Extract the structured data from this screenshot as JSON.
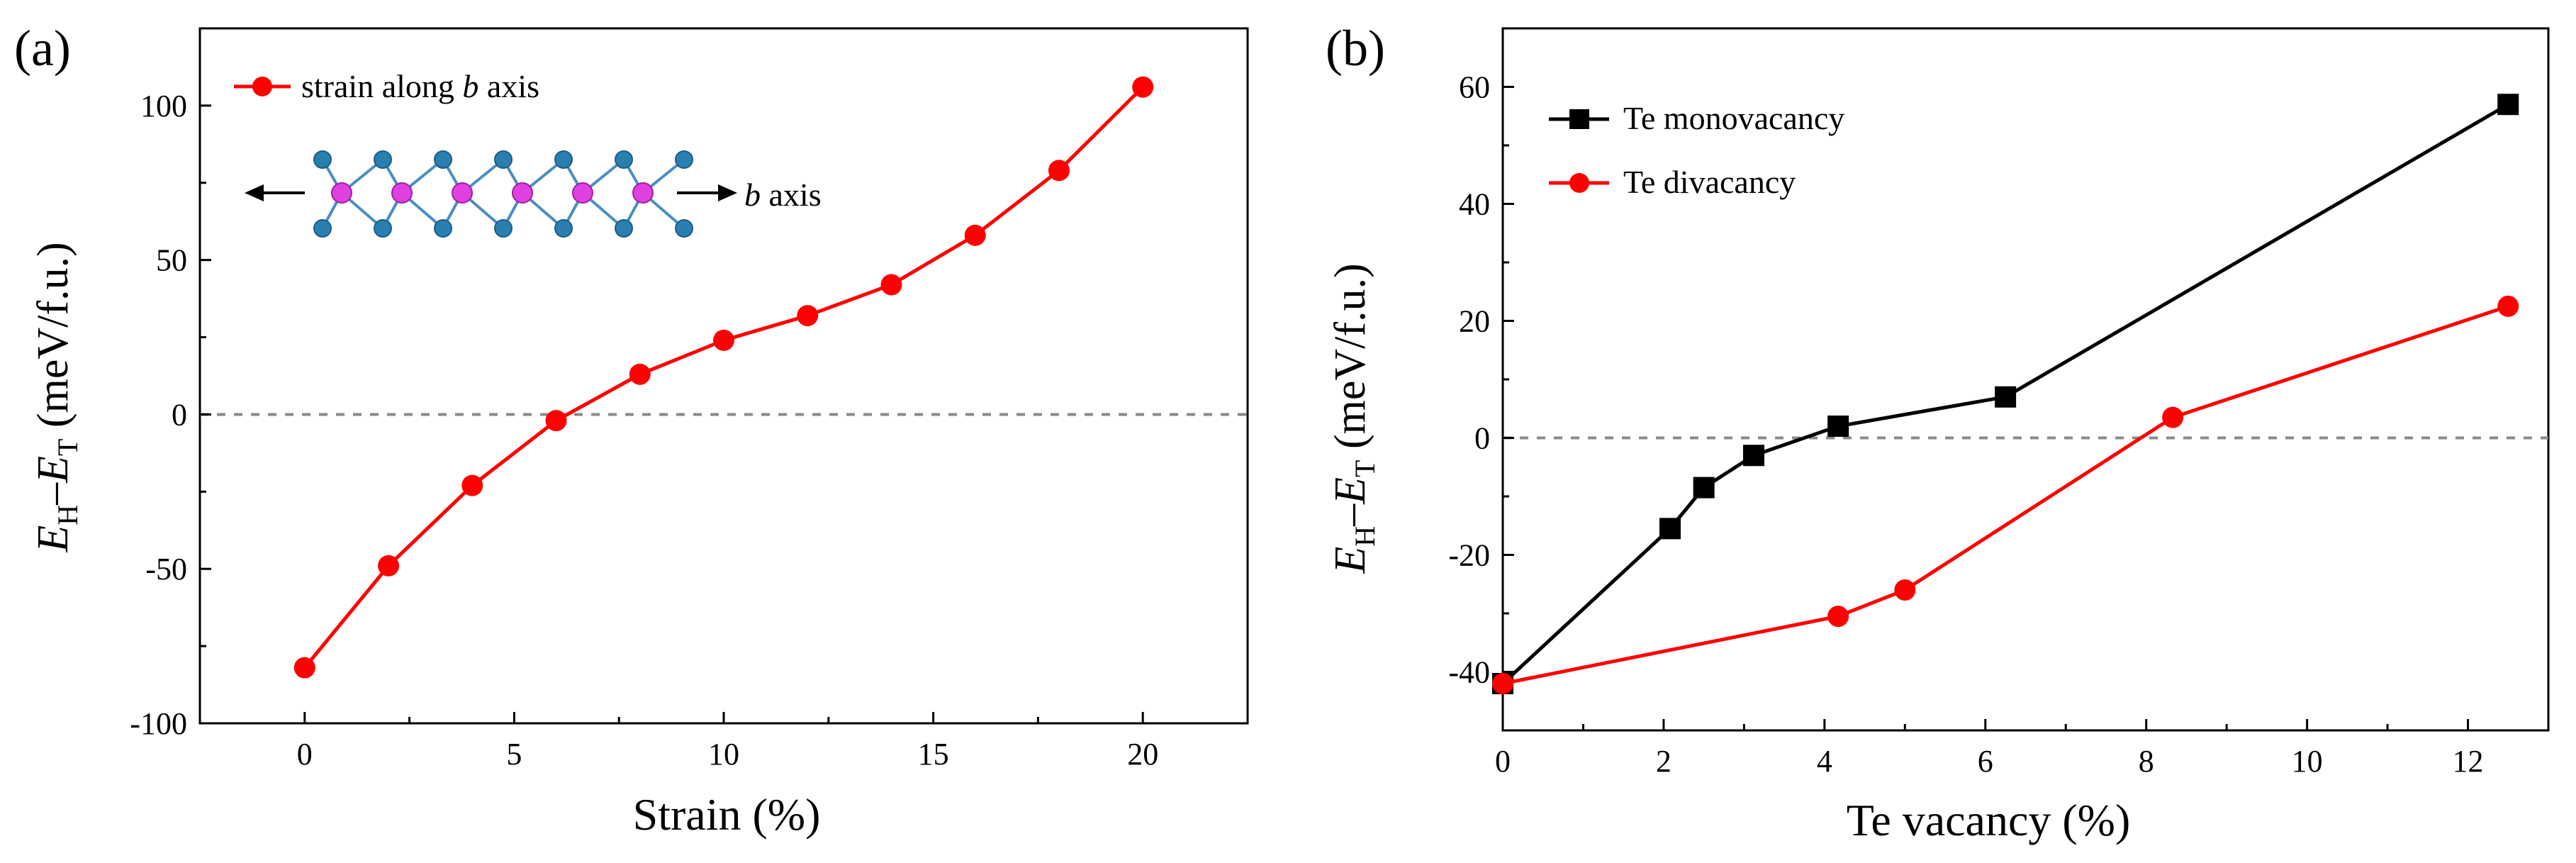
{
  "panels": {
    "a": {
      "label": "(a)"
    },
    "b": {
      "label": "(b)"
    }
  },
  "ylabel_parts": {
    "e": "E",
    "h": "H",
    "dash": "–",
    "t": "T",
    "units": " (meV/f.u.)"
  },
  "inset": {
    "b_italic": "b",
    "axis_word": " axis"
  },
  "colors": {
    "red": "#ff0000",
    "black": "#000000",
    "dashed": "#8a8a8a",
    "atom_blue": "#2a7fb0",
    "atom_pink": "#e040e0",
    "bond": "#4a8fc0"
  },
  "chart_data": [
    {
      "type": "line",
      "panel": "a",
      "title": "",
      "xlabel": "Strain (%)",
      "ylabel": "E_H–E_T (meV/f.u.)",
      "xlim": [
        -2.5,
        22.5
      ],
      "ylim": [
        -100,
        125
      ],
      "xticks": [
        0,
        5,
        10,
        15,
        20
      ],
      "yticks": [
        -100,
        -50,
        0,
        50,
        100
      ],
      "xtick_labels": [
        "0",
        "5",
        "10",
        "15",
        "20"
      ],
      "ytick_labels": [
        "-100",
        "-50",
        "0",
        "50",
        "100"
      ],
      "reference_line": 0,
      "legend_position": "top-left",
      "series": [
        {
          "name": "strain along b axis",
          "legend_prefix": "strain along ",
          "legend_italic": "b",
          "legend_suffix": " axis",
          "color": "#ff0000",
          "marker": "circle",
          "x": [
            0,
            2,
            4,
            6,
            8,
            10,
            12,
            14,
            16,
            18,
            20
          ],
          "y": [
            -82,
            -49,
            -23,
            -2,
            13,
            24,
            32,
            42,
            58,
            79,
            106
          ]
        }
      ]
    },
    {
      "type": "line",
      "panel": "b",
      "title": "",
      "xlabel": "Te vacancy (%)",
      "ylabel": "E_H–E_T (meV/f.u.)",
      "xlim": [
        0,
        13
      ],
      "ylim": [
        -50,
        70
      ],
      "xticks": [
        0,
        2,
        4,
        6,
        8,
        10,
        12
      ],
      "yticks": [
        -40,
        -20,
        0,
        20,
        40,
        60
      ],
      "xtick_labels": [
        "0",
        "2",
        "4",
        "6",
        "8",
        "10",
        "12"
      ],
      "ytick_labels": [
        "-40",
        "-20",
        "0",
        "20",
        "40",
        "60"
      ],
      "reference_line": 0,
      "legend_position": "top-left",
      "series": [
        {
          "name": "Te monovacancy",
          "color": "#000000",
          "marker": "square",
          "x": [
            0,
            2.08,
            2.5,
            3.12,
            4.17,
            6.25,
            12.5
          ],
          "y": [
            -42,
            -15.5,
            -8.5,
            -3,
            2,
            7,
            57
          ]
        },
        {
          "name": "Te divacancy",
          "color": "#ff0000",
          "marker": "circle",
          "x": [
            0,
            4.17,
            5,
            8.33,
            12.5
          ],
          "y": [
            -42,
            -30.5,
            -26,
            3.5,
            22.5
          ]
        }
      ]
    }
  ]
}
